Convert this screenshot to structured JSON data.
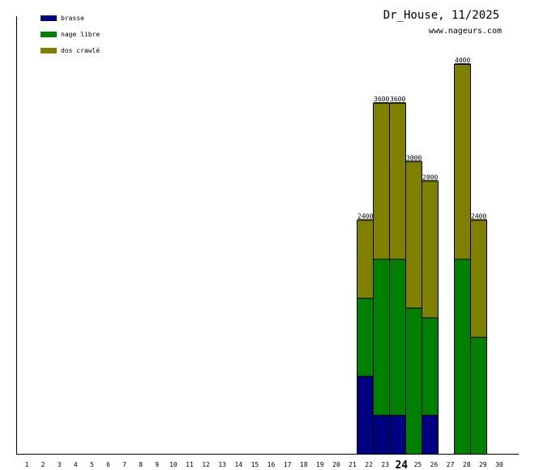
{
  "chart_data": {
    "type": "bar",
    "stacked": true,
    "title": "Dr_House, 11/2025",
    "subtitle": "www.nageurs.com",
    "xlabel": "",
    "ylabel": "",
    "highlight_category": "24",
    "categories": [
      "1",
      "2",
      "3",
      "4",
      "5",
      "6",
      "7",
      "8",
      "9",
      "10",
      "11",
      "12",
      "13",
      "14",
      "15",
      "16",
      "17",
      "18",
      "19",
      "20",
      "21",
      "22",
      "23",
      "24",
      "25",
      "26",
      "27",
      "28",
      "29",
      "30"
    ],
    "ylim": [
      0,
      4000
    ],
    "grid": false,
    "legend_position": "top-left",
    "series": [
      {
        "name": "brasse",
        "color": "#000080",
        "values": [
          0,
          0,
          0,
          0,
          0,
          0,
          0,
          0,
          0,
          0,
          0,
          0,
          0,
          0,
          0,
          0,
          0,
          0,
          0,
          0,
          0,
          800,
          400,
          400,
          0,
          400,
          0,
          0,
          0,
          0
        ]
      },
      {
        "name": "nage libre",
        "color": "#008000",
        "values": [
          0,
          0,
          0,
          0,
          0,
          0,
          0,
          0,
          0,
          0,
          0,
          0,
          0,
          0,
          0,
          0,
          0,
          0,
          0,
          0,
          0,
          800,
          1600,
          1600,
          1500,
          1000,
          0,
          2000,
          1200,
          0
        ]
      },
      {
        "name": "dos crawlé",
        "color": "#808000",
        "values": [
          0,
          0,
          0,
          0,
          0,
          0,
          0,
          0,
          0,
          0,
          0,
          0,
          0,
          0,
          0,
          0,
          0,
          0,
          0,
          0,
          0,
          800,
          1600,
          1600,
          1500,
          1400,
          0,
          2000,
          1200,
          0
        ]
      }
    ],
    "totals": [
      "",
      "",
      "",
      "",
      "",
      "",
      "",
      "",
      "",
      "",
      "",
      "",
      "",
      "",
      "",
      "",
      "",
      "",
      "",
      "",
      "",
      "2400",
      "3600",
      "3600",
      "3000",
      "2800",
      "",
      "4000",
      "2400",
      ""
    ]
  }
}
